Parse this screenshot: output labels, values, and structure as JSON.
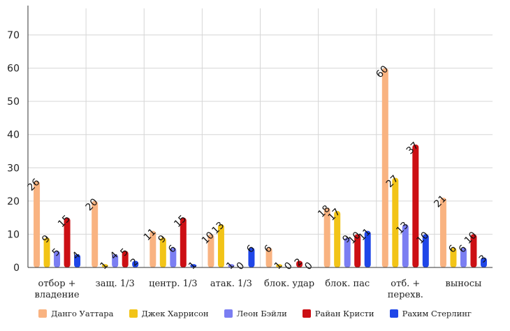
{
  "chart_data": {
    "type": "bar",
    "categories": [
      "отбор + владение",
      "защ. 1/3",
      "центр. 1/3",
      "атак. 1/3",
      "блок. удар",
      "блок. пас",
      "отб. + перехв.",
      "выносы"
    ],
    "category_lines": [
      [
        "отбор +",
        "владение"
      ],
      [
        "защ. 1/3"
      ],
      [
        "центр. 1/3"
      ],
      [
        "атак. 1/3"
      ],
      [
        "блок. удар"
      ],
      [
        "блок. пас"
      ],
      [
        "отб. +",
        "перехв."
      ],
      [
        "выносы"
      ]
    ],
    "series": [
      {
        "name": "Данго Уаттара",
        "color": "#f9b381",
        "values": [
          26,
          20,
          11,
          10,
          6,
          18,
          60,
          21
        ]
      },
      {
        "name": "Джек Харрисон",
        "color": "#f2c417",
        "values": [
          9,
          1,
          9,
          13,
          1,
          17,
          27,
          6
        ]
      },
      {
        "name": "Леон Бэйли",
        "color": "#7b7ef2",
        "values": [
          5,
          4,
          6,
          1,
          0,
          9,
          13,
          6
        ]
      },
      {
        "name": "Райан Кристи",
        "color": "#cc0f14",
        "values": [
          15,
          5,
          15,
          0,
          2,
          10,
          37,
          10
        ]
      },
      {
        "name": "Рахим Стерлинг",
        "color": "#1f46e8",
        "values": [
          4,
          2,
          1,
          6,
          0,
          11,
          10,
          3
        ]
      }
    ],
    "yticks": [
      0,
      10,
      20,
      30,
      40,
      50,
      60,
      70
    ],
    "ylim": [
      0,
      78
    ],
    "grid": true,
    "legend": "bottom"
  }
}
